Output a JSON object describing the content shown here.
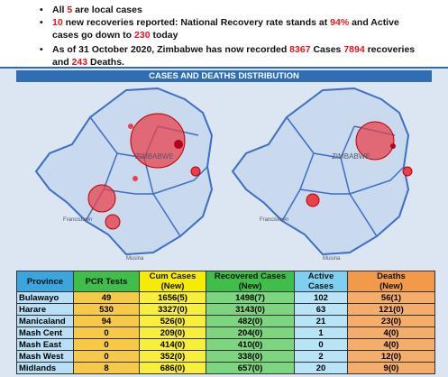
{
  "bullets": [
    [
      {
        "text": "All "
      },
      {
        "text": "5",
        "color": "#e8141c"
      },
      {
        "text": " are local cases"
      }
    ],
    [
      {
        "text": "10",
        "color": "#e8141c"
      },
      {
        "text": " new recoveries reported: National Recovery rate stands at "
      },
      {
        "text": "94%",
        "color": "#e8141c"
      },
      {
        "text": " and Active cases go down to "
      },
      {
        "text": "230",
        "color": "#e8141c"
      },
      {
        "text": " today"
      }
    ],
    [
      {
        "text": "As of 31 October 2020, Zimbabwe has now recorded "
      },
      {
        "text": "8367",
        "color": "#e8141c"
      },
      {
        "text": " Cases "
      },
      {
        "text": "7894",
        "color": "#e8141c"
      },
      {
        "text": " recoveries and "
      },
      {
        "text": "243",
        "color": "#e8141c"
      },
      {
        "text": " Deaths."
      }
    ]
  ],
  "section_title": "CASES AND DEATHS DISTRIBUTION",
  "maps": [
    {
      "labels": [
        "ZIMBABWE",
        "Francistown",
        "Musina"
      ]
    },
    {
      "labels": [
        "ZIMBABWE",
        "Francistown",
        "Musina"
      ]
    }
  ],
  "table": {
    "header": [
      [
        "Province"
      ],
      [
        "PCR Tests"
      ],
      [
        "Cum Cases",
        "(New)"
      ],
      [
        "Recovered Cases",
        "(New)"
      ],
      [
        "Active",
        "Cases"
      ],
      [
        "Deaths",
        "(New)"
      ]
    ],
    "header_colors": [
      "#3aa6dd",
      "#3fbf4a",
      "#f5ec00",
      "#3fbf4a",
      "#7fd0f0",
      "#f2994a"
    ],
    "column_colors": [
      "#b8dff5",
      "#f7c948",
      "#f8ef3c",
      "#7dd67f",
      "#b8e4f7",
      "#f4ad6b"
    ],
    "rows": [
      [
        "Bulawayo",
        "49",
        "1656(5)",
        "1498(7)",
        "102",
        "56(1)"
      ],
      [
        "Harare",
        "530",
        "3327(0)",
        "3143(0)",
        "63",
        "121(0)"
      ],
      [
        "Manicaland",
        "94",
        "526(0)",
        "482(0)",
        "21",
        "23(0)"
      ],
      [
        "Mash Cent",
        "0",
        "209(0)",
        "204(0)",
        "1",
        "4(0)"
      ],
      [
        "Mash East",
        "0",
        "414(0)",
        "410(0)",
        "0",
        "4(0)"
      ],
      [
        "Mash West",
        "0",
        "352(0)",
        "338(0)",
        "2",
        "12(0)"
      ],
      [
        "Midlands",
        "8",
        "686(0)",
        "657(0)",
        "20",
        "9(0)"
      ]
    ]
  }
}
